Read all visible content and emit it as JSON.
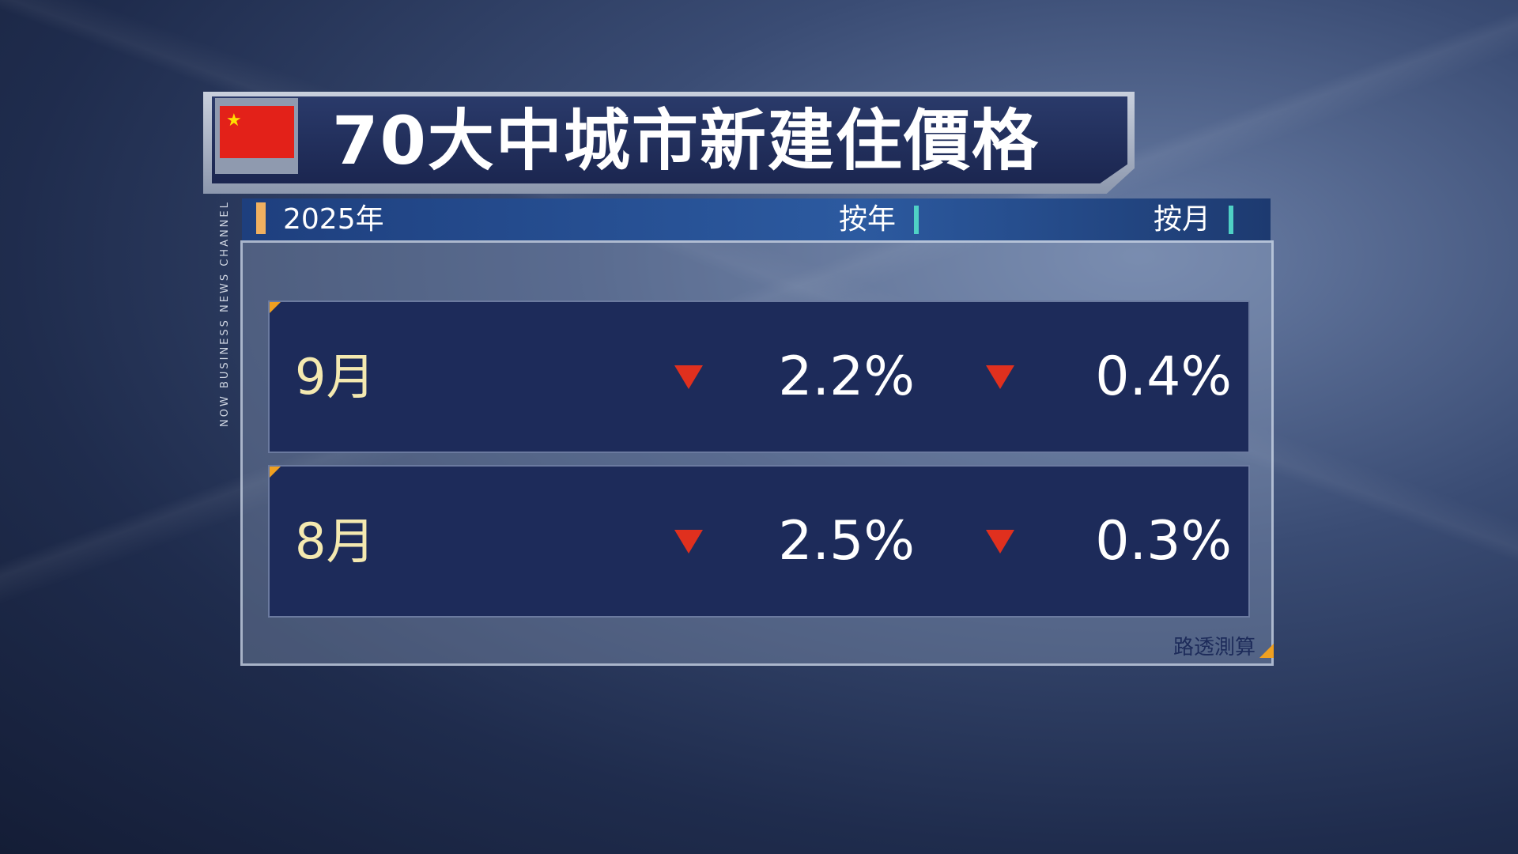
{
  "header": {
    "title": "70大中城市新建住價格"
  },
  "table": {
    "period": "2025年",
    "columns": [
      "按年",
      "按月"
    ],
    "rows": [
      [
        "9月",
        "2.2%",
        "0.4%"
      ],
      [
        "8月",
        "2.5%",
        "0.3%"
      ]
    ]
  },
  "source": "路透測算",
  "channel": "NOW BUSINESS NEWS CHANNEL"
}
